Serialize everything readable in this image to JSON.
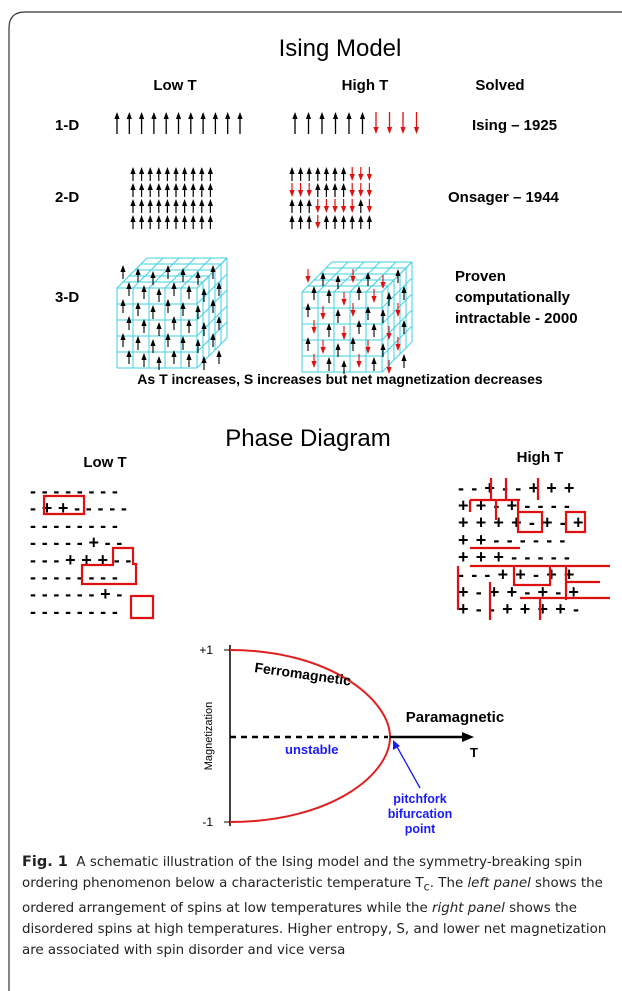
{
  "figure": {
    "title": "Ising Model",
    "headers": [
      "Low T",
      "High T",
      "Solved"
    ],
    "rows": [
      {
        "label": "1-D",
        "solved": [
          "Ising – 1925"
        ]
      },
      {
        "label": "2-D",
        "solved": [
          "Onsager – 1944"
        ]
      },
      {
        "label": "3-D",
        "solved": [
          "Proven",
          "computationally",
          "intractable - 2000"
        ]
      }
    ],
    "note": "As T increases, S increases but net magnetization decreases",
    "phase": {
      "title": "Phase Diagram",
      "low_label": "Low T",
      "high_label": "High T",
      "low_grid": [
        "--------",
        "-++-----",
        "--------",
        "-----+--",
        "---+++--",
        "--------",
        "------+-",
        "--------"
      ],
      "high_grid": [
        "--+--+++",
        "++-+----",
        "++++-+-+",
        "++------",
        "+++-----",
        "---++-++",
        "+-++-+-+",
        "+--++++-"
      ]
    },
    "graph": {
      "plus_one": "+1",
      "minus_one": "-1",
      "y_label": "Magnetization",
      "ferro": "Ferromagnetic",
      "para": "Paramagnetic",
      "unstable": "unstable",
      "x_label": "T",
      "point": [
        "pitchfork",
        "bifurcation",
        "point"
      ]
    },
    "caption": {
      "label": "Fig. 1",
      "text1": "A schematic illustration of the Ising model and the symmetry-breaking spin ordering phenomenon below a characteristic temperature T",
      "sub": "c",
      "text2": ". The ",
      "italic1": "left panel",
      "text3": " shows the ordered arrangement of spins at low temperatures while the ",
      "italic2": "right panel",
      "text4": " shows the disordered spins at high temperatures. Higher entropy, S, and lower net magnetization are associated with spin disorder and vice versa"
    }
  }
}
